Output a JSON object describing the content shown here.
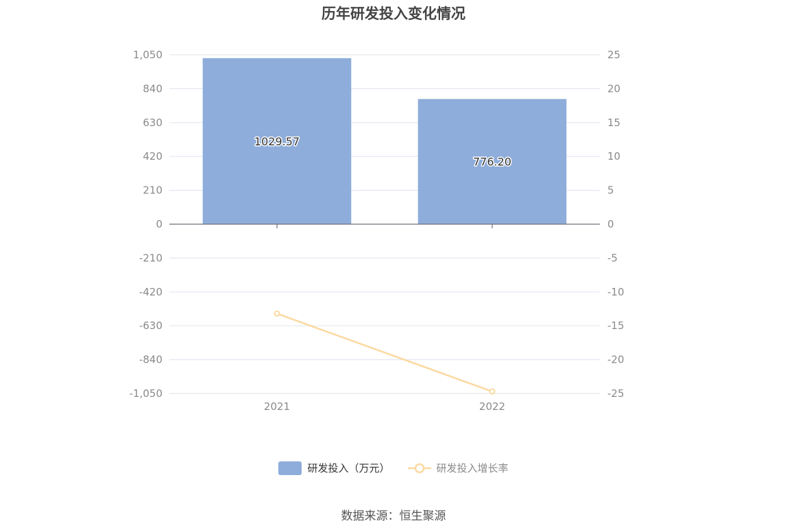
{
  "chart_data": {
    "type": "bar",
    "title": "历年研发投入变化情况",
    "categories": [
      "2021",
      "2022"
    ],
    "series": [
      {
        "name": "研发投入（万元）",
        "kind": "bar",
        "axis": "left",
        "color": "#8eaddb",
        "values": [
          1029.57,
          776.2
        ],
        "labels": [
          "1029.57",
          "776.20"
        ]
      },
      {
        "name": "研发投入增长率",
        "kind": "line",
        "axis": "right",
        "color": "#fbd9a0",
        "values": [
          -13.2,
          -24.7
        ]
      }
    ],
    "y_left": {
      "range": [
        -1050,
        1050
      ],
      "ticks": [
        "1,050",
        "840",
        "630",
        "420",
        "210",
        "0",
        "-210",
        "-420",
        "-630",
        "-840",
        "-1,050"
      ]
    },
    "y_right": {
      "range": [
        -25,
        25
      ],
      "ticks": [
        "25",
        "20",
        "15",
        "10",
        "5",
        "0",
        "-5",
        "-10",
        "-15",
        "-20",
        "-25"
      ]
    },
    "grid": true,
    "legend_position": "bottom"
  },
  "source": "数据来源：恒生聚源"
}
